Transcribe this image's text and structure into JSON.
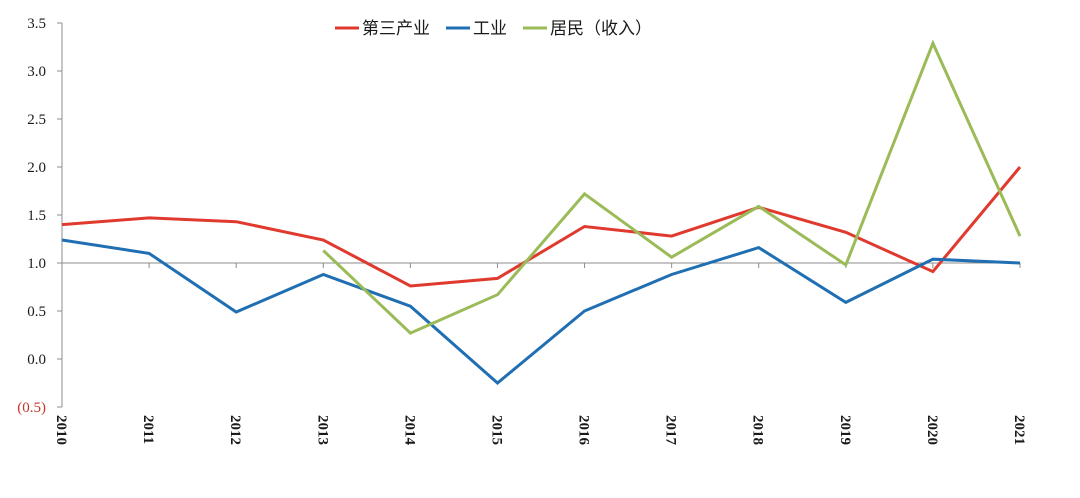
{
  "chart_data": {
    "type": "line",
    "x": [
      "2010",
      "2011",
      "2012",
      "2013",
      "2014",
      "2015",
      "2016",
      "2017",
      "2018",
      "2019",
      "2020",
      "2021"
    ],
    "ylim": [
      -0.5,
      3.5
    ],
    "y_ticks": [
      -0.5,
      0.0,
      0.5,
      1.0,
      1.5,
      2.0,
      2.5,
      3.0,
      3.5
    ],
    "y_tick_labels": [
      "(0.5)",
      "0.0",
      "0.5",
      "1.0",
      "1.5",
      "2.0",
      "2.5",
      "3.0",
      "3.5"
    ],
    "reference_line": 1.0,
    "grid": false,
    "legend_position": "top-center",
    "series": [
      {
        "name": "第三产业",
        "color": "#e03a2f",
        "values": [
          1.4,
          1.47,
          1.43,
          1.24,
          0.76,
          0.84,
          1.38,
          1.28,
          1.58,
          1.32,
          0.91,
          2.0
        ]
      },
      {
        "name": "工业",
        "color": "#1f6fb2",
        "values": [
          1.24,
          1.1,
          0.49,
          0.88,
          0.55,
          -0.25,
          0.5,
          0.88,
          1.16,
          0.59,
          1.04,
          1.0
        ]
      },
      {
        "name": "居民（收入）",
        "color": "#9bbb59",
        "values": [
          null,
          null,
          null,
          1.13,
          0.27,
          0.67,
          1.72,
          1.06,
          1.59,
          0.98,
          3.29,
          1.28
        ]
      }
    ]
  }
}
